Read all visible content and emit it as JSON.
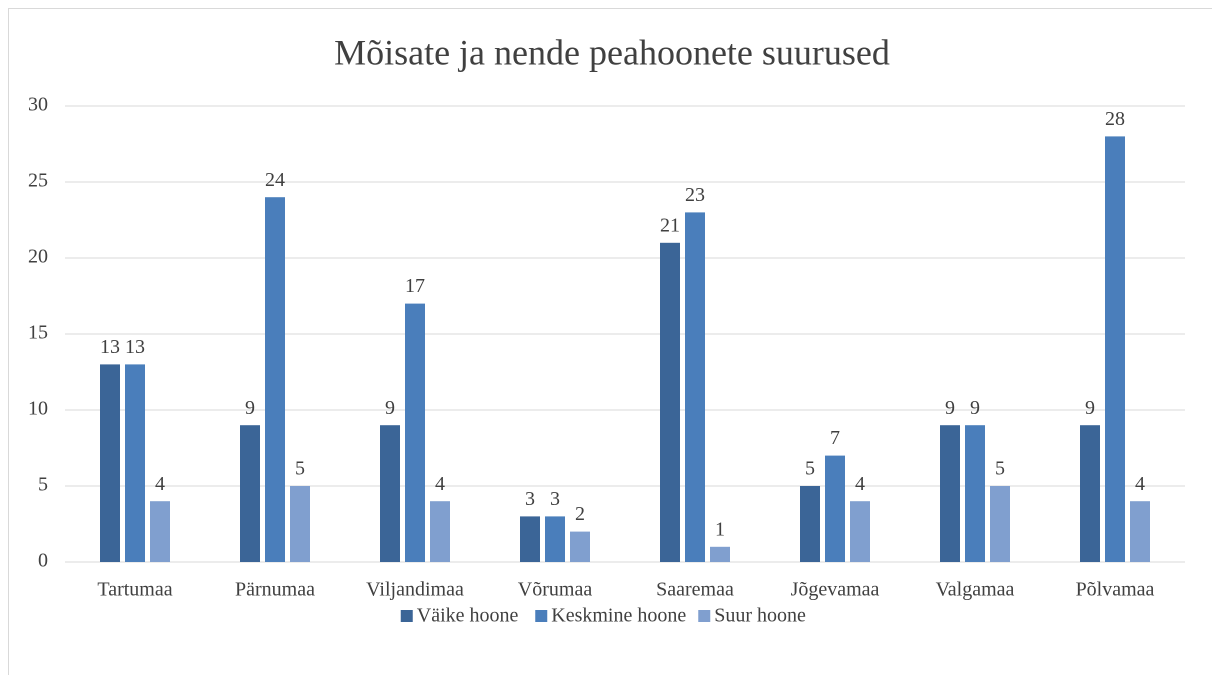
{
  "chart_data": {
    "type": "bar",
    "title": "Mõisate ja nende peahoonete suurused",
    "categories": [
      "Tartumaa",
      "Pärnumaa",
      "Viljandimaa",
      "Võrumaa",
      "Saaremaa",
      "Jõgevamaa",
      "Valgamaa",
      "Põlvamaa"
    ],
    "series": [
      {
        "name": "Väike hoone",
        "color": "#3b6597",
        "values": [
          13,
          9,
          9,
          3,
          21,
          5,
          9,
          9
        ]
      },
      {
        "name": "Keskmine hoone",
        "color": "#4a7ebb",
        "values": [
          13,
          24,
          17,
          3,
          23,
          7,
          9,
          28
        ]
      },
      {
        "name": "Suur hoone",
        "color": "#809fcf",
        "values": [
          4,
          5,
          4,
          2,
          1,
          4,
          5,
          4
        ]
      }
    ],
    "ylim": [
      0,
      30
    ],
    "yticks": [
      0,
      5,
      10,
      15,
      20,
      25,
      30
    ],
    "grid": true,
    "legend": "bottom"
  }
}
